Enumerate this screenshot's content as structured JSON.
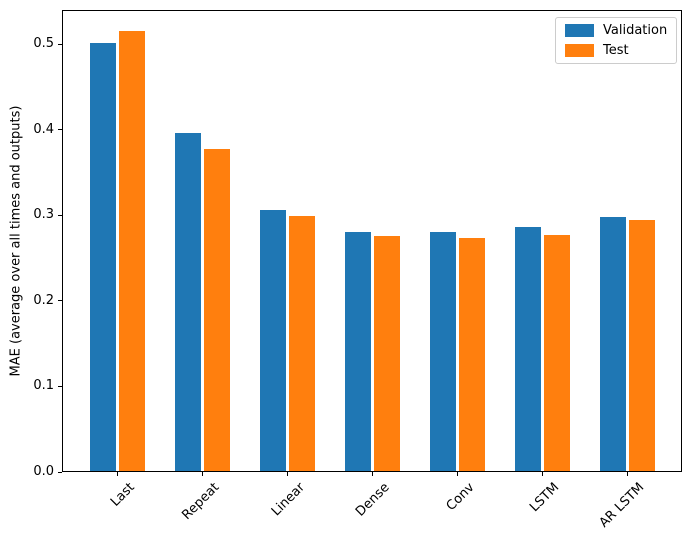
{
  "chart_data": {
    "type": "bar",
    "title": "",
    "categories": [
      "Last",
      "Repeat",
      "Linear",
      "Dense",
      "Conv",
      "LSTM",
      "AR LSTM"
    ],
    "series": [
      {
        "name": "Validation",
        "color": "#1f77b4",
        "values": [
          0.501,
          0.396,
          0.306,
          0.281,
          0.28,
          0.286,
          0.298
        ]
      },
      {
        "name": "Test",
        "color": "#ff7f0e",
        "values": [
          0.516,
          0.377,
          0.299,
          0.276,
          0.273,
          0.277,
          0.294
        ]
      }
    ],
    "xlabel": "",
    "ylabel": "MAE (average over all times and outputs)",
    "yticks": [
      0.0,
      0.1,
      0.2,
      0.3,
      0.4,
      0.5
    ],
    "ytick_format": "one_decimal",
    "ylim": [
      0,
      0.54
    ],
    "xtick_rotation": 45,
    "grid": false,
    "legend": {
      "position": "upper right",
      "items": [
        "Validation",
        "Test"
      ]
    }
  },
  "colors": {
    "background": "#ffffff",
    "spine": "#000000",
    "text": "#000000",
    "legend_border": "#cccccc"
  }
}
